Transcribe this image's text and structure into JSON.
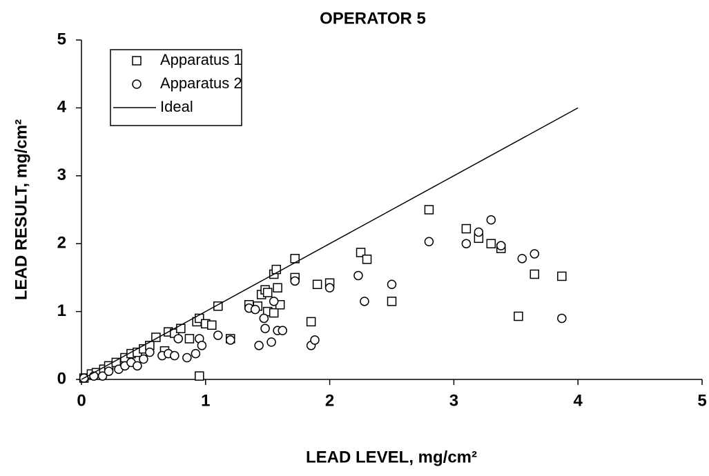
{
  "chart_data": {
    "type": "scatter",
    "title": "OPERATOR 5",
    "x_label": "LEAD LEVEL, mg/cm²",
    "y_label": "LEAD RESULT, mg/cm²",
    "xlim": [
      0,
      5
    ],
    "ylim": [
      0,
      5
    ],
    "xticks": [
      0,
      1,
      2,
      3,
      4,
      5
    ],
    "yticks": [
      0,
      1,
      2,
      3,
      4,
      5
    ],
    "legend": "upper left",
    "series": [
      {
        "name": "Apparatus 1",
        "marker": "square",
        "color": "#000000",
        "x": [
          0.02,
          0.08,
          0.12,
          0.18,
          0.22,
          0.28,
          0.35,
          0.4,
          0.45,
          0.5,
          0.55,
          0.6,
          0.67,
          0.7,
          0.75,
          0.8,
          0.87,
          0.93,
          0.95,
          0.95,
          1.0,
          1.05,
          1.1,
          1.2,
          1.35,
          1.42,
          1.45,
          1.48,
          1.5,
          1.5,
          1.55,
          1.55,
          1.57,
          1.58,
          1.6,
          1.72,
          1.72,
          1.85,
          1.9,
          2.0,
          2.25,
          2.3,
          2.5,
          2.8,
          3.1,
          3.2,
          3.3,
          3.38,
          3.52,
          3.65,
          3.87
        ],
        "values": [
          0.02,
          0.08,
          0.1,
          0.15,
          0.2,
          0.25,
          0.32,
          0.38,
          0.4,
          0.45,
          0.5,
          0.62,
          0.42,
          0.7,
          0.68,
          0.75,
          0.6,
          0.85,
          0.9,
          0.05,
          0.82,
          0.8,
          1.08,
          0.6,
          1.1,
          1.08,
          1.25,
          1.32,
          1.28,
          1.0,
          0.98,
          1.55,
          1.62,
          1.35,
          1.1,
          1.78,
          1.5,
          0.85,
          1.4,
          1.42,
          1.87,
          1.77,
          1.15,
          2.5,
          2.22,
          2.08,
          2.0,
          1.93,
          0.93,
          1.55,
          1.52
        ]
      },
      {
        "name": "Apparatus 2",
        "marker": "circle",
        "color": "#000000",
        "x": [
          0.02,
          0.1,
          0.17,
          0.22,
          0.3,
          0.35,
          0.4,
          0.45,
          0.5,
          0.55,
          0.65,
          0.7,
          0.75,
          0.78,
          0.85,
          0.92,
          0.95,
          0.97,
          1.1,
          1.2,
          1.35,
          1.4,
          1.43,
          1.47,
          1.48,
          1.53,
          1.55,
          1.58,
          1.62,
          1.72,
          1.85,
          1.88,
          2.0,
          2.23,
          2.28,
          2.5,
          2.8,
          3.1,
          3.2,
          3.3,
          3.38,
          3.55,
          3.65,
          3.87
        ],
        "values": [
          0.02,
          0.05,
          0.05,
          0.12,
          0.15,
          0.2,
          0.25,
          0.2,
          0.3,
          0.4,
          0.35,
          0.38,
          0.35,
          0.6,
          0.32,
          0.38,
          0.6,
          0.5,
          0.65,
          0.58,
          1.05,
          1.03,
          0.5,
          0.9,
          0.75,
          0.55,
          1.15,
          0.72,
          0.72,
          1.45,
          0.5,
          0.58,
          1.35,
          1.53,
          1.15,
          1.4,
          2.03,
          2.0,
          2.17,
          2.35,
          1.97,
          1.78,
          1.85,
          0.9
        ]
      },
      {
        "name": "Ideal",
        "marker": "line",
        "color": "#000000",
        "x": [
          0,
          4
        ],
        "values": [
          0,
          4
        ]
      }
    ]
  }
}
